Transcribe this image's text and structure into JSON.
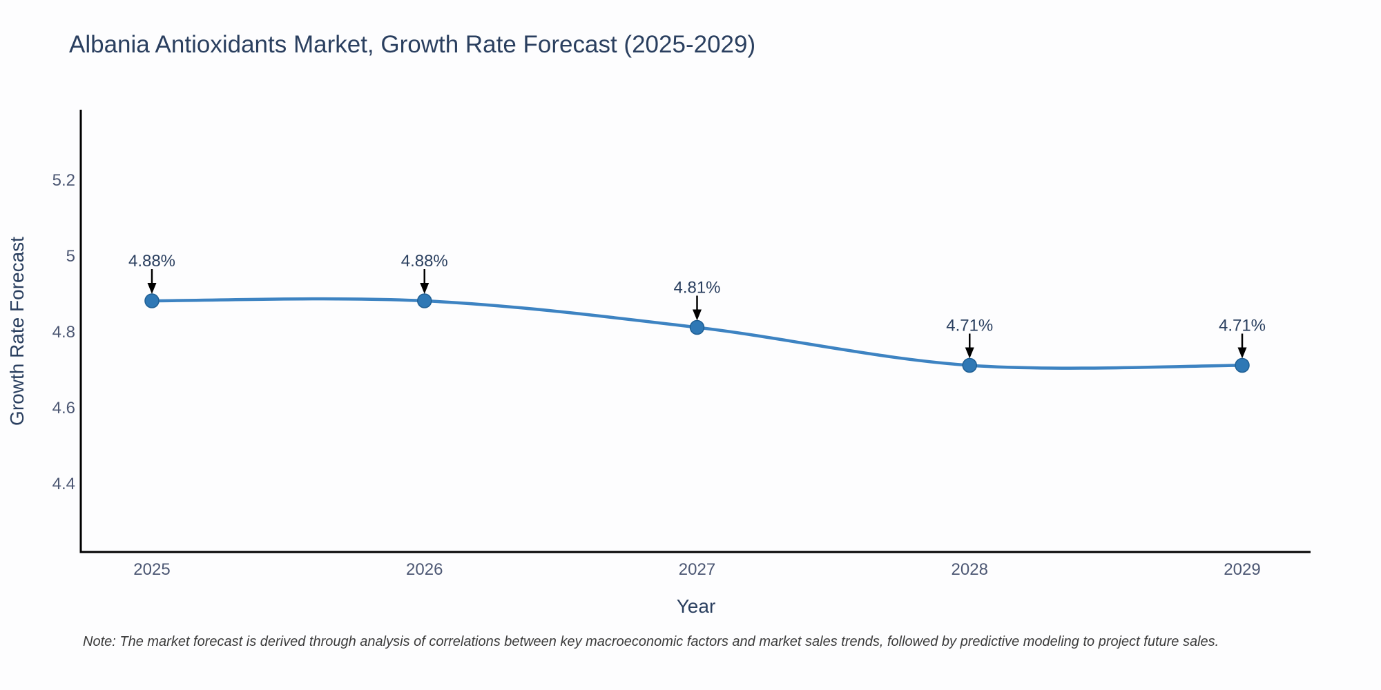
{
  "title": "Albania Antioxidants Market, Growth Rate Forecast (2025-2029)",
  "note": "Note: The market forecast is derived through analysis of correlations between key macroeconomic factors and market sales trends, followed by predictive modeling to project future sales.",
  "chart_data": {
    "type": "line",
    "title": "Albania Antioxidants Market, Growth Rate Forecast (2025-2029)",
    "x": [
      2025,
      2026,
      2027,
      2028,
      2029
    ],
    "values": [
      4.88,
      4.88,
      4.81,
      4.71,
      4.71
    ],
    "point_labels": [
      "4.88%",
      "4.88%",
      "4.81%",
      "4.71%",
      "4.71%"
    ],
    "xtick_labels": [
      "2025",
      "2026",
      "2027",
      "2028",
      "2029"
    ],
    "ytick_values": [
      4.4,
      4.6,
      4.8,
      5.0,
      5.2
    ],
    "ytick_labels": [
      "4.4",
      "4.6",
      "4.8",
      "5",
      "5.2"
    ],
    "xlabel": "Year",
    "ylabel": "Growth Rate Forecast",
    "ylim": [
      4.22,
      5.38
    ],
    "line_shape": "spline",
    "grid": false,
    "legend": false,
    "colors": {
      "line": "#3d83c2",
      "marker_fill": "#2f78b5",
      "marker_edge": "#1f5f94",
      "arrow": "#000000",
      "axis_line": "#000000",
      "title_text": "#2a3f5f",
      "tick_text": "#4c5773",
      "note_text": "#3b3b3b"
    }
  }
}
